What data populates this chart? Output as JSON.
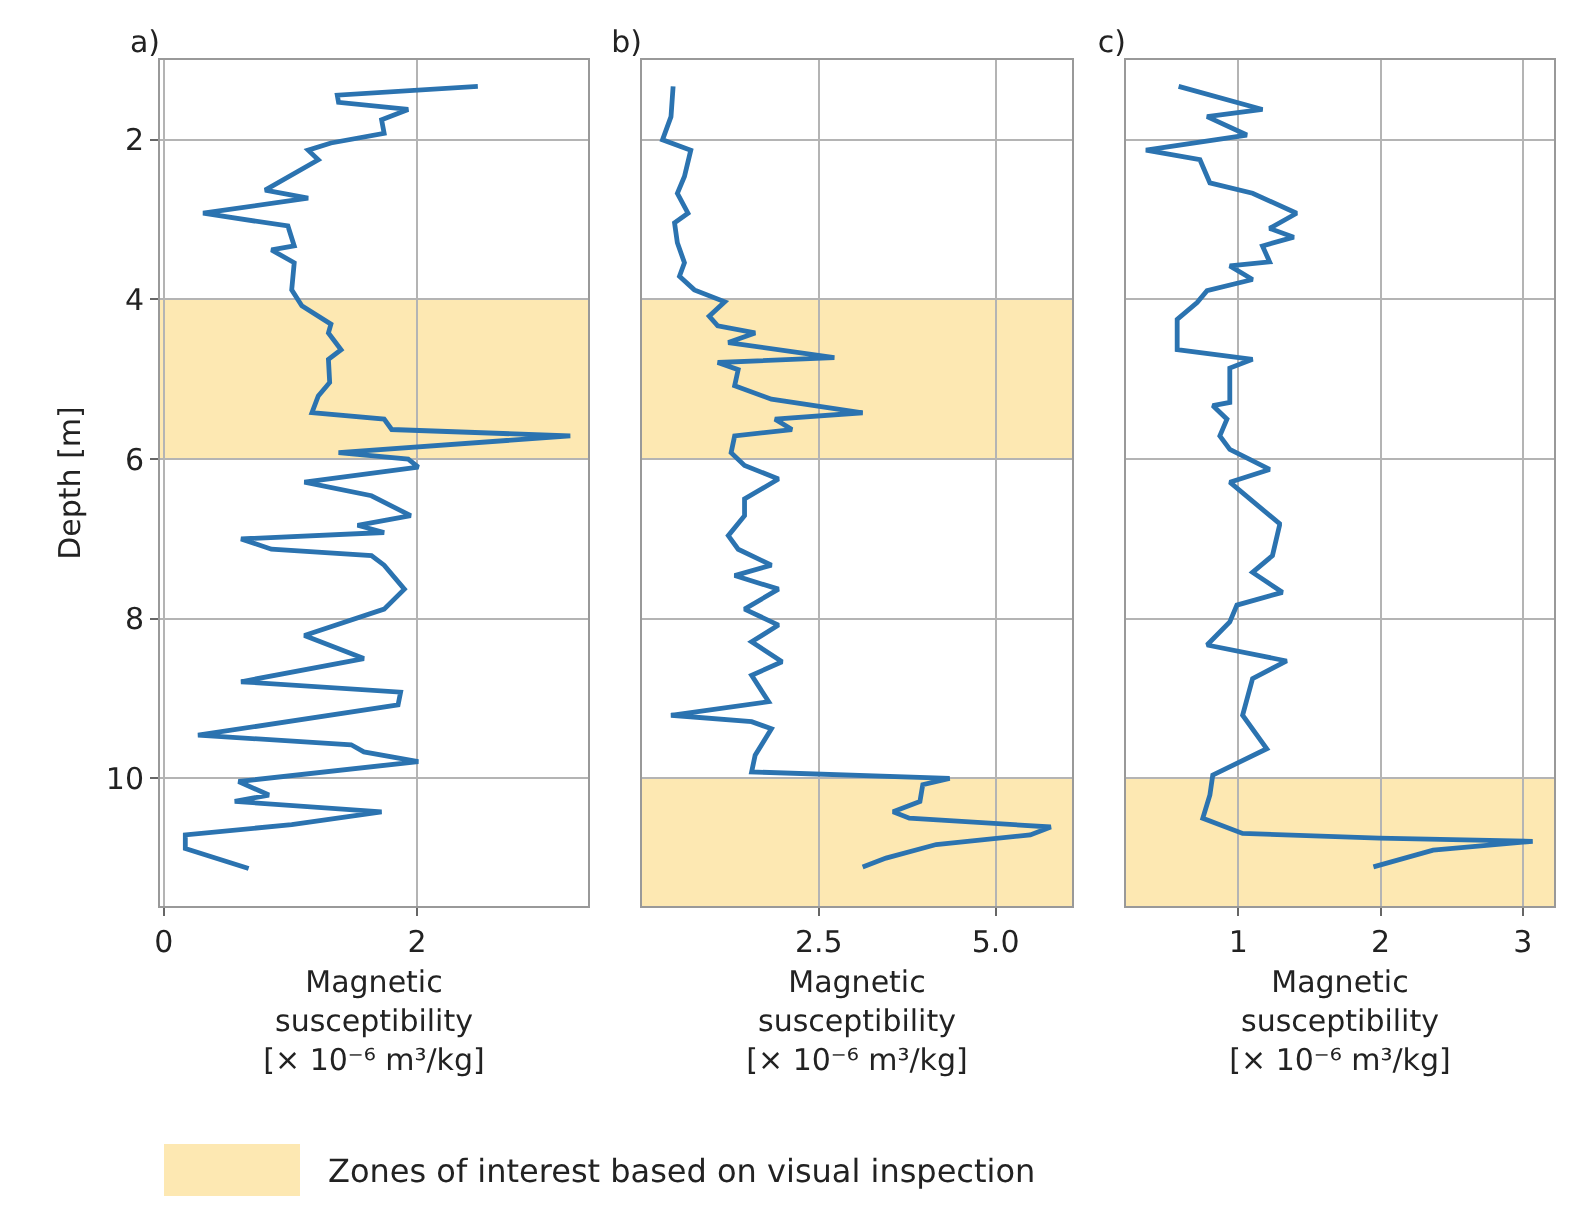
{
  "chart_data": [
    {
      "type": "line",
      "title": "a)",
      "xlabel": "Magnetic\nsusceptibility\n[× 10⁻⁶ m³/kg]",
      "ylabel": "Depth [m]",
      "color": "#2b73b0",
      "x": [
        2.48,
        1.37,
        1.38,
        1.93,
        1.72,
        1.74,
        1.32,
        1.14,
        1.22,
        0.8,
        1.14,
        0.31,
        0.98,
        1.03,
        0.85,
        1.03,
        1.01,
        1.09,
        1.32,
        1.3,
        1.4,
        1.3,
        1.31,
        1.22,
        1.17,
        1.74,
        1.8,
        3.21,
        1.38,
        1.93,
        2.01,
        1.11,
        1.64,
        1.95,
        1.53,
        1.74,
        0.61,
        0.85,
        1.64,
        1.74,
        1.9,
        1.74,
        1.11,
        1.58,
        0.61,
        1.87,
        1.85,
        0.27,
        1.48,
        1.58,
        2.01,
        0.59,
        0.83,
        0.56,
        1.72,
        1.01,
        0.17,
        0.17,
        0.67
      ],
      "values": [
        1.33,
        1.44,
        1.53,
        1.62,
        1.75,
        1.92,
        2.04,
        2.13,
        2.25,
        2.63,
        2.73,
        2.92,
        3.08,
        3.33,
        3.38,
        3.54,
        3.88,
        4.08,
        4.31,
        4.42,
        4.63,
        4.75,
        5.04,
        5.21,
        5.42,
        5.5,
        5.63,
        5.71,
        5.92,
        6.0,
        6.1,
        6.29,
        6.46,
        6.71,
        6.83,
        6.92,
        7.0,
        7.13,
        7.21,
        7.33,
        7.63,
        7.88,
        8.21,
        8.5,
        8.79,
        8.92,
        9.08,
        9.46,
        9.58,
        9.67,
        9.79,
        10.04,
        10.21,
        10.29,
        10.42,
        10.58,
        10.71,
        10.88,
        11.13
      ],
      "xlim": [
        -0.03,
        3.35
      ],
      "xticks": [
        0,
        2
      ],
      "ylim": [
        11.6,
        1.0
      ],
      "yticks": [
        2,
        4,
        6,
        8,
        10
      ],
      "grid": true,
      "bands": [
        {
          "axis": "y",
          "from": 4,
          "to": 6,
          "label": "Zones of interest based on visual inspection",
          "color": "#fde8b2"
        }
      ]
    },
    {
      "type": "line",
      "title": "b)",
      "xlabel": "Magnetic\nsusceptibility\n[× 10⁻⁶ m³/kg]",
      "color": "#2b73b0",
      "x": [
        0.44,
        0.41,
        0.29,
        0.69,
        0.6,
        0.5,
        0.65,
        0.46,
        0.5,
        0.6,
        0.53,
        0.74,
        1.17,
        0.95,
        1.07,
        1.6,
        1.22,
        2.72,
        1.07,
        1.36,
        1.31,
        1.83,
        3.12,
        1.88,
        2.12,
        1.31,
        1.26,
        1.45,
        1.93,
        1.45,
        1.45,
        1.22,
        1.36,
        1.83,
        1.31,
        1.93,
        1.45,
        1.93,
        1.55,
        1.98,
        1.55,
        1.79,
        0.41,
        1.55,
        1.83,
        1.6,
        1.55,
        4.35,
        3.97,
        3.93,
        3.55,
        3.78,
        5.78,
        5.49,
        4.16,
        3.45,
        3.12
      ],
      "values": [
        1.33,
        1.71,
        2.0,
        2.13,
        2.46,
        2.67,
        2.92,
        3.04,
        3.29,
        3.54,
        3.71,
        3.88,
        4.03,
        4.21,
        4.33,
        4.42,
        4.54,
        4.73,
        4.79,
        4.88,
        5.08,
        5.25,
        5.42,
        5.5,
        5.63,
        5.71,
        5.92,
        6.08,
        6.25,
        6.5,
        6.71,
        6.96,
        7.13,
        7.33,
        7.46,
        7.63,
        7.88,
        8.08,
        8.29,
        8.54,
        8.71,
        9.04,
        9.21,
        9.29,
        9.38,
        9.71,
        9.92,
        10.0,
        10.08,
        10.29,
        10.42,
        10.5,
        10.61,
        10.71,
        10.83,
        11.0,
        11.11
      ],
      "xlim": [
        0,
        6.08
      ],
      "xticks": [
        {
          "value": 2.5,
          "label": "2.5"
        },
        {
          "value": 5,
          "label": "5.0"
        }
      ],
      "ylim": [
        11.6,
        1.0
      ],
      "yticks": [
        2,
        4,
        6,
        8,
        10
      ],
      "grid": true,
      "tick_labels": "x",
      "bands": [
        {
          "axis": "y",
          "from": 4,
          "to": 6,
          "color": "#fde8b2"
        },
        {
          "axis": "y",
          "from": 10,
          "to": 11.6,
          "color": "#fde8b2"
        }
      ]
    },
    {
      "type": "line",
      "title": "c)",
      "xlabel": "Magnetic\nsusceptibility\n[× 10⁻⁶ m³/kg]",
      "color": "#2b73b0",
      "x": [
        0.58,
        1.17,
        0.78,
        1.06,
        0.35,
        0.73,
        0.8,
        1.1,
        1.41,
        1.22,
        1.39,
        1.17,
        1.22,
        0.94,
        1.1,
        0.78,
        0.71,
        0.57,
        0.57,
        1.1,
        0.94,
        0.94,
        0.82,
        0.92,
        0.87,
        0.94,
        1.22,
        0.94,
        1.29,
        1.29,
        1.24,
        1.1,
        1.31,
        0.99,
        0.94,
        0.78,
        1.34,
        1.1,
        1.03,
        1.2,
        0.82,
        0.8,
        0.75,
        1.03,
        1.99,
        3.07,
        2.37,
        1.95
      ],
      "values": [
        1.33,
        1.62,
        1.71,
        1.94,
        2.13,
        2.25,
        2.54,
        2.67,
        2.92,
        3.11,
        3.22,
        3.33,
        3.53,
        3.58,
        3.75,
        3.89,
        4.04,
        4.25,
        4.63,
        4.75,
        4.86,
        5.29,
        5.33,
        5.5,
        5.71,
        5.88,
        6.13,
        6.29,
        6.81,
        6.83,
        7.21,
        7.42,
        7.67,
        7.83,
        8.04,
        8.33,
        8.53,
        8.75,
        9.21,
        9.63,
        9.96,
        10.21,
        10.5,
        10.69,
        10.75,
        10.79,
        10.9,
        11.11
      ],
      "xlim": [
        0.21,
        3.22
      ],
      "xticks": [
        1,
        2,
        3
      ],
      "ylim": [
        11.6,
        1.0
      ],
      "yticks": [
        2,
        4,
        6,
        8,
        10
      ],
      "grid": true,
      "tick_labels": "x",
      "bands": [
        {
          "axis": "y",
          "from": 10,
          "to": 11.6,
          "color": "#fde8b2"
        }
      ]
    }
  ]
}
